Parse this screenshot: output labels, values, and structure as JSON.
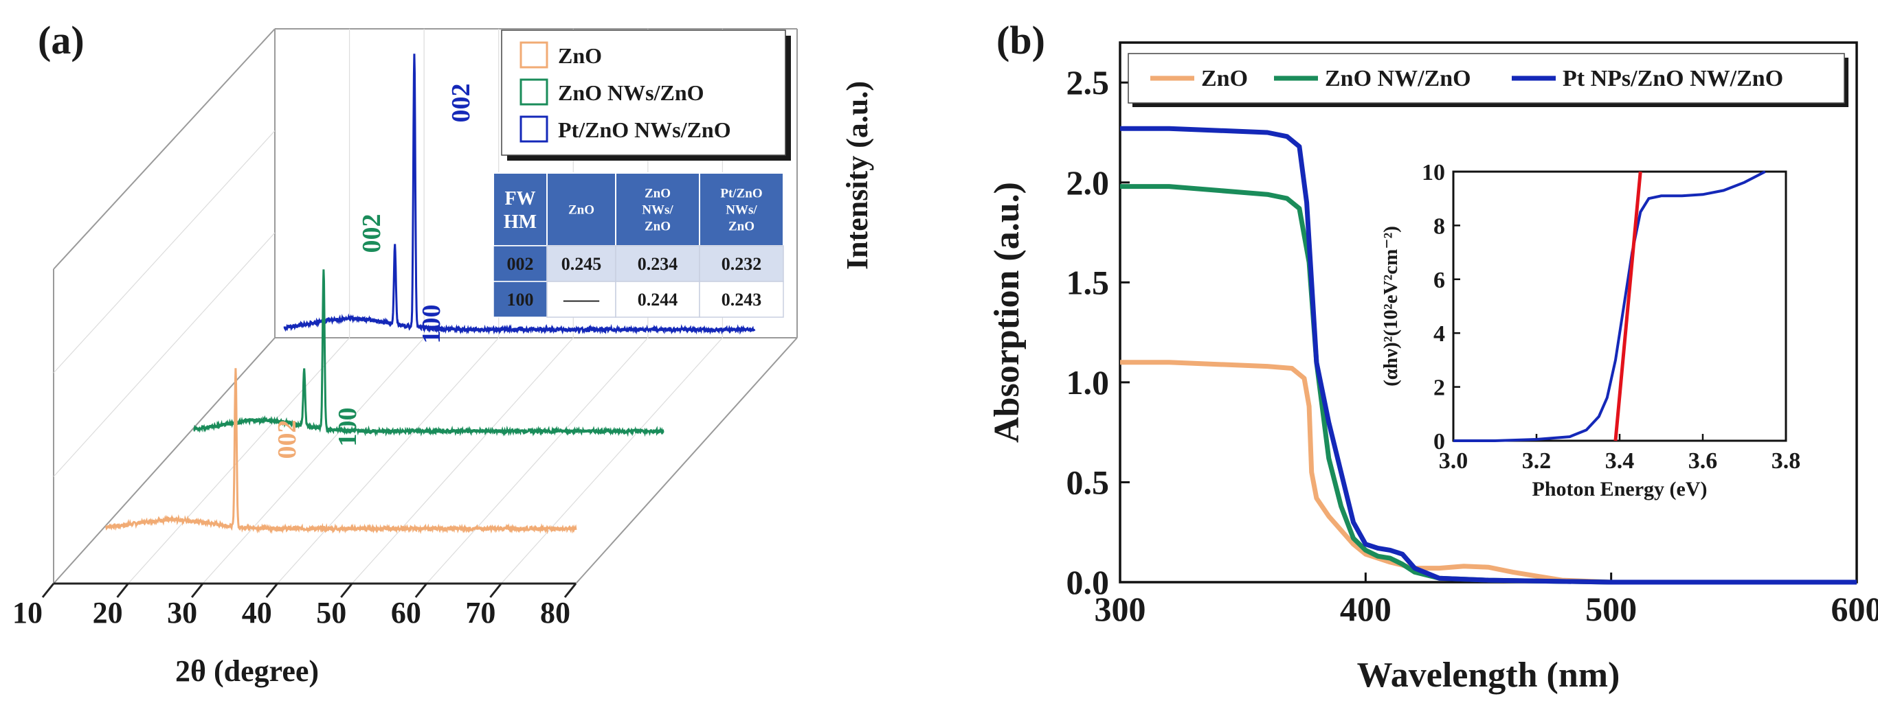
{
  "colors": {
    "zno": "#f1ab74",
    "nw": "#1a8c5a",
    "pt": "#1428b8",
    "fit": "#e3121b",
    "table_header": "#3f68b3",
    "table_row": "#d6deef"
  },
  "chart_data": [
    {
      "type": "line",
      "panel_label": "(a)",
      "title": "",
      "xlabel": "2θ (degree)",
      "ylabel": "Intensity (a.u.)",
      "xlim": [
        10,
        80
      ],
      "x_ticks": [
        "10",
        "20",
        "30",
        "40",
        "50",
        "60",
        "70",
        "80"
      ],
      "legend": [
        "ZnO",
        "ZnO NWs/ZnO",
        "Pt/ZnO NWs/ZnO"
      ],
      "series": [
        {
          "name": "ZnO",
          "color_key": "zno",
          "baseline": 0.0,
          "hump": {
            "center": 26,
            "height": 0.04,
            "width": 7
          },
          "peaks": [
            {
              "x": 34.4,
              "height": 1.0,
              "label": "002"
            }
          ]
        },
        {
          "name": "ZnO NWs/ZnO",
          "color_key": "nw",
          "baseline": 0.0,
          "hump": {
            "center": 26,
            "height": 0.05,
            "width": 7
          },
          "peaks": [
            {
              "x": 31.8,
              "height": 0.37,
              "label": "100"
            },
            {
              "x": 34.4,
              "height": 1.0,
              "label": "002"
            }
          ]
        },
        {
          "name": "Pt/ZnO NWs/ZnO",
          "color_key": "pt",
          "baseline": 0.0,
          "hump": {
            "center": 26,
            "height": 0.05,
            "width": 7
          },
          "peaks": [
            {
              "x": 31.8,
              "height": 0.37,
              "label": "100"
            },
            {
              "x": 34.4,
              "height": 1.0,
              "label": "002"
            }
          ]
        }
      ],
      "table": {
        "header": [
          "FW HM",
          "ZnO",
          "ZnO NWs/ ZnO",
          "Pt/ZnO NWs/ ZnO"
        ],
        "header_lines": [
          [
            "FW",
            "HM"
          ],
          [
            "ZnO"
          ],
          [
            "ZnO",
            "NWs/",
            "ZnO"
          ],
          [
            "Pt/ZnO",
            "NWs/",
            "ZnO"
          ]
        ],
        "rows": [
          [
            "002",
            "0.245",
            "0.234",
            "0.232"
          ],
          [
            "100",
            "——",
            "0.244",
            "0.243"
          ]
        ]
      }
    },
    {
      "type": "line",
      "panel_label": "(b)",
      "title": "",
      "xlabel": "Wavelength (nm)",
      "ylabel": "Absorption (a.u.)",
      "xlim": [
        300,
        600
      ],
      "ylim": [
        0,
        2.7
      ],
      "x_ticks": [
        "300",
        "400",
        "500",
        "600"
      ],
      "y_ticks": [
        "0.0",
        "0.5",
        "1.0",
        "1.5",
        "2.0",
        "2.5"
      ],
      "legend": [
        "ZnO",
        "ZnO NW/ZnO",
        "Pt NPs/ZnO NW/ZnO"
      ],
      "series": [
        {
          "name": "ZnO",
          "color_key": "zno",
          "x": [
            300,
            320,
            340,
            360,
            370,
            375,
            377,
            378,
            380,
            385,
            390,
            395,
            400,
            410,
            420,
            430,
            440,
            450,
            460,
            470,
            480,
            500,
            600
          ],
          "y": [
            1.1,
            1.1,
            1.09,
            1.08,
            1.07,
            1.02,
            0.88,
            0.55,
            0.42,
            0.33,
            0.26,
            0.19,
            0.14,
            0.1,
            0.07,
            0.07,
            0.08,
            0.075,
            0.05,
            0.03,
            0.01,
            0.0,
            0.0
          ]
        },
        {
          "name": "ZnO NW/ZnO",
          "color_key": "nw",
          "x": [
            300,
            320,
            340,
            360,
            368,
            373,
            377,
            380,
            385,
            390,
            395,
            400,
            405,
            410,
            415,
            420,
            430,
            450,
            500,
            600
          ],
          "y": [
            1.98,
            1.98,
            1.96,
            1.94,
            1.92,
            1.87,
            1.6,
            1.1,
            0.62,
            0.38,
            0.22,
            0.16,
            0.13,
            0.12,
            0.09,
            0.05,
            0.02,
            0.01,
            0.0,
            0.0
          ]
        },
        {
          "name": "Pt NPs/ZnO NW/ZnO",
          "color_key": "pt",
          "x": [
            300,
            320,
            340,
            360,
            368,
            373,
            376,
            380,
            385,
            390,
            395,
            400,
            405,
            410,
            415,
            420,
            430,
            450,
            500,
            600
          ],
          "y": [
            2.27,
            2.27,
            2.26,
            2.25,
            2.23,
            2.18,
            1.9,
            1.1,
            0.8,
            0.55,
            0.3,
            0.19,
            0.17,
            0.16,
            0.14,
            0.07,
            0.02,
            0.01,
            0.0,
            0.0
          ]
        }
      ],
      "inset": {
        "xlabel": "Photon Energy (eV)",
        "ylabel": "(αhν)²(10²eV²cm⁻²)",
        "xlim": [
          3.0,
          3.8
        ],
        "ylim": [
          0,
          10
        ],
        "x_ticks": [
          "3.0",
          "3.2",
          "3.4",
          "3.6",
          "3.8"
        ],
        "y_ticks": [
          "0",
          "2",
          "4",
          "6",
          "8",
          "10"
        ],
        "curve": {
          "color_key": "pt",
          "x": [
            3.0,
            3.1,
            3.2,
            3.28,
            3.32,
            3.35,
            3.37,
            3.39,
            3.41,
            3.43,
            3.45,
            3.47,
            3.5,
            3.55,
            3.6,
            3.65,
            3.7,
            3.75
          ],
          "y": [
            0.0,
            0.0,
            0.05,
            0.15,
            0.4,
            0.9,
            1.6,
            3.0,
            5.0,
            7.0,
            8.5,
            9.0,
            9.1,
            9.1,
            9.15,
            9.3,
            9.6,
            10.0
          ]
        },
        "fit": {
          "color_key": "fit",
          "x": [
            3.39,
            3.45
          ],
          "y": [
            0.0,
            10.0
          ]
        }
      }
    }
  ]
}
